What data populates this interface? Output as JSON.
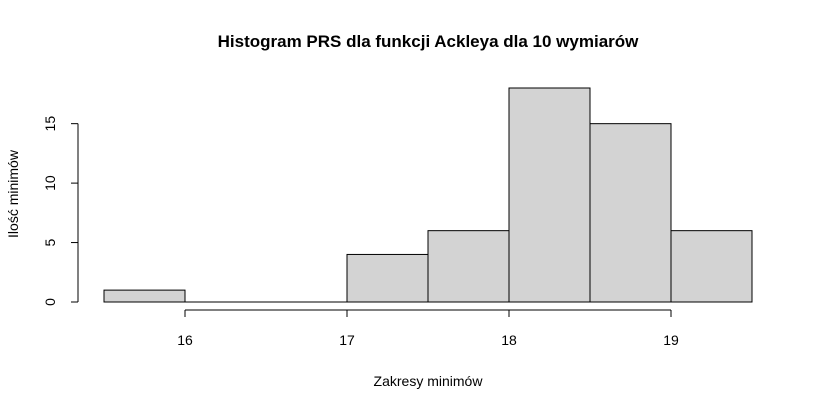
{
  "chart_data": {
    "type": "bar",
    "title": "Histogram PRS dla funkcji Ackleya dla 10 wymiarów",
    "xlabel": "Zakresy minimów",
    "ylabel": "Ilość minimów",
    "bins": [
      {
        "from": 15.5,
        "to": 16.0,
        "value": 1
      },
      {
        "from": 16.0,
        "to": 16.5,
        "value": 0
      },
      {
        "from": 16.5,
        "to": 17.0,
        "value": 0
      },
      {
        "from": 17.0,
        "to": 17.5,
        "value": 4
      },
      {
        "from": 17.5,
        "to": 18.0,
        "value": 6
      },
      {
        "from": 18.0,
        "to": 18.5,
        "value": 18
      },
      {
        "from": 18.5,
        "to": 19.0,
        "value": 15
      },
      {
        "from": 19.0,
        "to": 19.5,
        "value": 6
      }
    ],
    "xlim": [
      15.5,
      19.5
    ],
    "ylim": [
      0,
      18
    ],
    "x_ticks": [
      16,
      17,
      18,
      19
    ],
    "y_ticks": [
      0,
      5,
      10,
      15
    ],
    "bar_color": "#d3d3d3",
    "grid": false,
    "legend": "none"
  }
}
